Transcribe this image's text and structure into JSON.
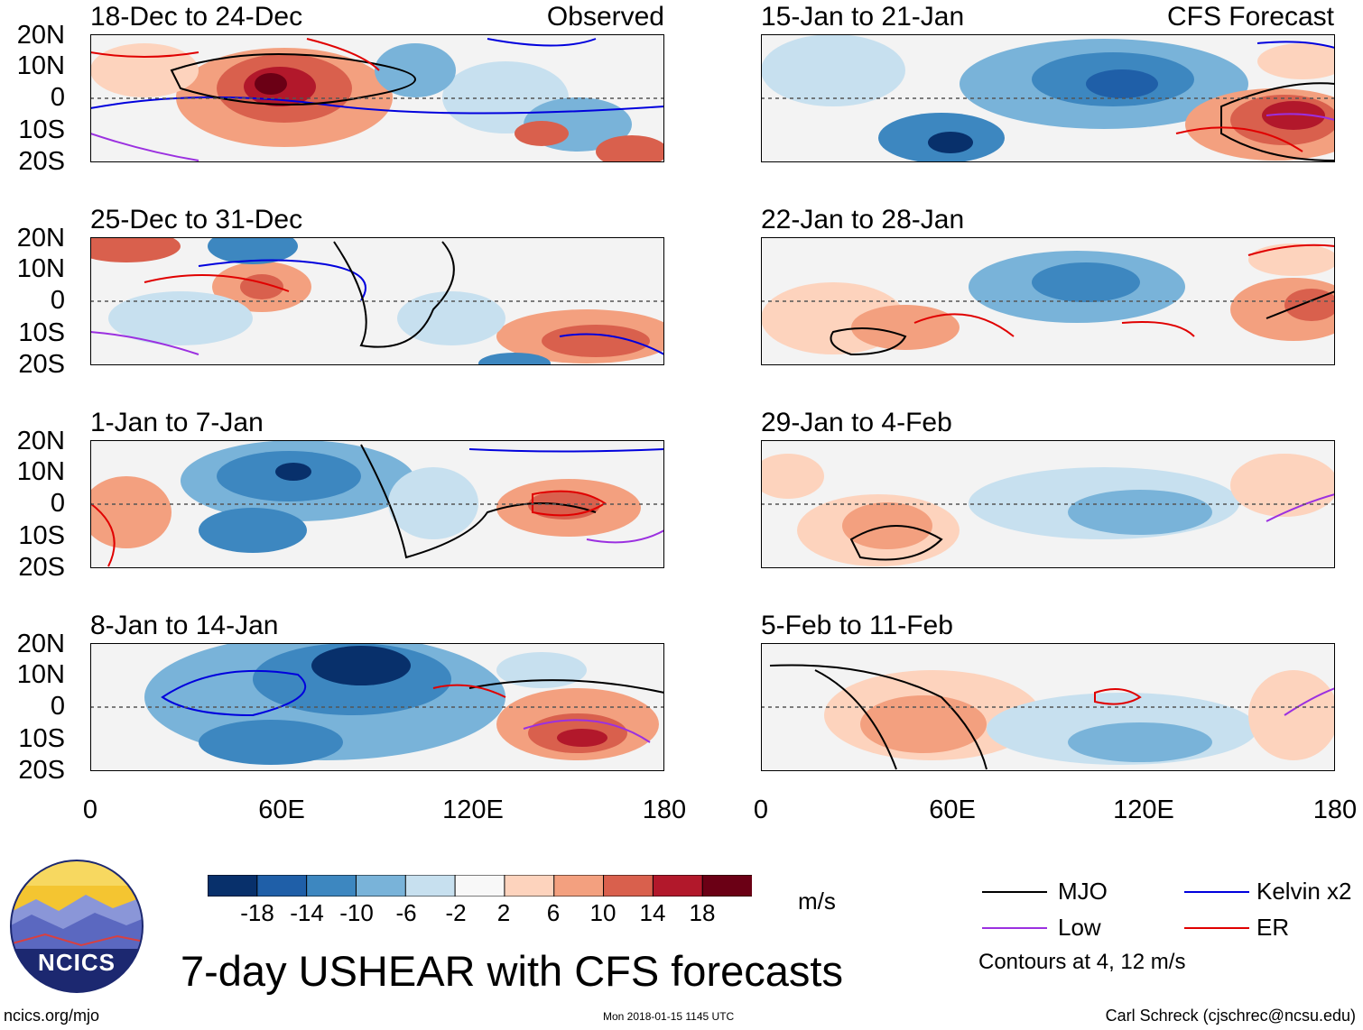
{
  "left_column": {
    "header_label": "Observed",
    "panels": [
      {
        "title": "18-Dec to 24-Dec"
      },
      {
        "title": "25-Dec to 31-Dec"
      },
      {
        "title": "1-Jan to 7-Jan"
      },
      {
        "title": "8-Jan to 14-Jan"
      }
    ]
  },
  "right_column": {
    "header_label": "CFS Forecast",
    "panels": [
      {
        "title": "15-Jan to 21-Jan"
      },
      {
        "title": "22-Jan to 28-Jan"
      },
      {
        "title": "29-Jan to 4-Feb"
      },
      {
        "title": "5-Feb to 11-Feb"
      }
    ]
  },
  "lat_ticks": [
    "20N",
    "10N",
    "0",
    "10S",
    "20S"
  ],
  "lon_ticks": [
    "0",
    "60E",
    "120E",
    "180"
  ],
  "colorbar": {
    "labels": [
      "-18",
      "-14",
      "-10",
      "-6",
      "-2",
      "2",
      "6",
      "10",
      "14",
      "18"
    ],
    "colors": [
      "#08306b",
      "#1f5fa8",
      "#3d87c0",
      "#79b3d9",
      "#c7e0ef",
      "#f8f8f8",
      "#fdd3bd",
      "#f3a07f",
      "#d9604d",
      "#b2182b",
      "#6b0015"
    ],
    "unit": "m/s"
  },
  "legend": {
    "items": [
      {
        "label": "MJO",
        "color": "#000000"
      },
      {
        "label": "Kelvin x2",
        "color": "#0000dd"
      },
      {
        "label": "Low",
        "color": "#9b30e0"
      },
      {
        "label": "ER",
        "color": "#e00000"
      }
    ],
    "note": "Contours at 4, 12 m/s"
  },
  "logo": {
    "text": "NCICS"
  },
  "main_title": "7-day USHEAR with CFS forecasts",
  "footer": {
    "left": "ncics.org/mjo",
    "center": "Mon 2018-01-15 1145 UTC",
    "right": "Carl Schreck (cjschrec@ncsu.edu)"
  }
}
